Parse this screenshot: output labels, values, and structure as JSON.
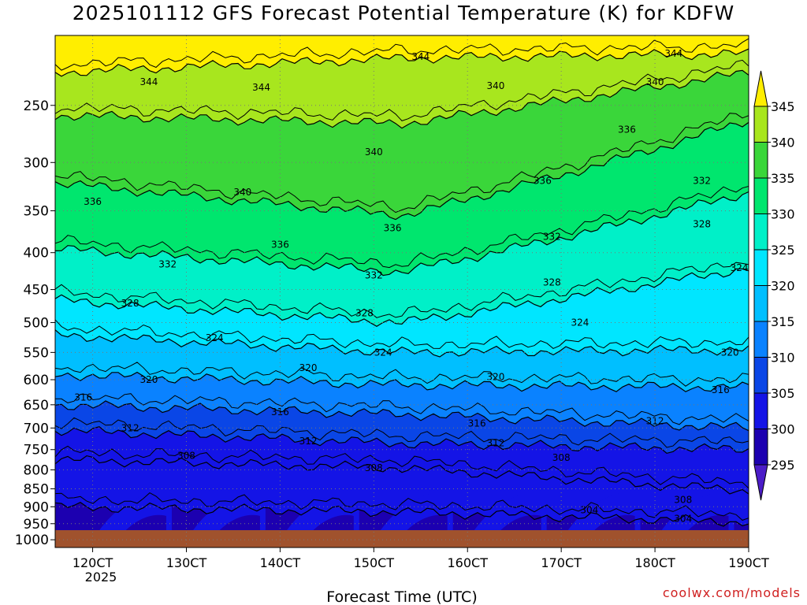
{
  "chart_data": {
    "type": "heatmap",
    "title": "2025101112 GFS Forecast Potential Temperature (K) for KDFW",
    "xlabel": "Forecast Time (UTC)",
    "ylabel": "",
    "x_ticks": [
      "120CT",
      "130CT",
      "140CT",
      "150CT",
      "160CT",
      "170CT",
      "180CT",
      "190CT"
    ],
    "x_ticks_x": [
      12,
      13,
      14,
      15,
      16,
      17,
      18,
      19
    ],
    "x_sublabel": "2025",
    "xlim": [
      11.6,
      19.0
    ],
    "y_ticks": [
      250,
      300,
      350,
      400,
      450,
      500,
      550,
      600,
      650,
      700,
      750,
      800,
      850,
      900,
      950,
      1000
    ],
    "y_scale": "log",
    "y_reversed": true,
    "ylim": [
      1025,
      200
    ],
    "colorbar_levels": [
      345,
      340,
      335,
      330,
      325,
      320,
      315,
      310,
      305,
      300,
      295
    ],
    "colorbar_colors": [
      "#ffee00",
      "#a8e61e",
      "#3ad63a",
      "#00e66e",
      "#00f0c8",
      "#00e6ff",
      "#00bfff",
      "#0a82ff",
      "#0a46e6",
      "#1414e6",
      "#1c00b0",
      "#4b1cc8"
    ],
    "contour_levels": [
      344,
      340,
      336,
      332,
      328,
      324,
      320,
      316,
      312,
      308,
      304
    ],
    "contour_pressure_at_start": [
      225,
      258,
      320,
      395,
      465,
      520,
      590,
      650,
      705,
      775,
      900
    ],
    "contour_pressure_at_mid": [
      215,
      265,
      355,
      425,
      500,
      550,
      610,
      670,
      735,
      795,
      915
    ],
    "contour_pressure_at_end": [
      212,
      225,
      262,
      330,
      420,
      545,
      615,
      700,
      750,
      855,
      945
    ],
    "labels_shown": [
      {
        "value": "344",
        "x": 15.5,
        "p": 214
      },
      {
        "value": "344",
        "x": 18.2,
        "p": 212
      },
      {
        "value": "344",
        "x": 12.6,
        "p": 232
      },
      {
        "value": "344",
        "x": 13.8,
        "p": 236
      },
      {
        "value": "340",
        "x": 16.3,
        "p": 235
      },
      {
        "value": "340",
        "x": 18.0,
        "p": 232
      },
      {
        "value": "340",
        "x": 15.0,
        "p": 290
      },
      {
        "value": "340",
        "x": 13.6,
        "p": 330
      },
      {
        "value": "336",
        "x": 12.0,
        "p": 340
      },
      {
        "value": "336",
        "x": 17.7,
        "p": 270
      },
      {
        "value": "336",
        "x": 16.8,
        "p": 318
      },
      {
        "value": "336",
        "x": 15.2,
        "p": 370
      },
      {
        "value": "336",
        "x": 14.0,
        "p": 390
      },
      {
        "value": "332",
        "x": 18.5,
        "p": 318
      },
      {
        "value": "332",
        "x": 16.9,
        "p": 380
      },
      {
        "value": "332",
        "x": 15.0,
        "p": 430
      },
      {
        "value": "332",
        "x": 12.8,
        "p": 415
      },
      {
        "value": "328",
        "x": 18.5,
        "p": 365
      },
      {
        "value": "328",
        "x": 16.9,
        "p": 440
      },
      {
        "value": "328",
        "x": 14.9,
        "p": 485
      },
      {
        "value": "328",
        "x": 12.4,
        "p": 470
      },
      {
        "value": "324",
        "x": 18.9,
        "p": 420
      },
      {
        "value": "324",
        "x": 17.2,
        "p": 500
      },
      {
        "value": "324",
        "x": 15.1,
        "p": 550
      },
      {
        "value": "324",
        "x": 13.3,
        "p": 525
      },
      {
        "value": "320",
        "x": 18.8,
        "p": 550
      },
      {
        "value": "320",
        "x": 16.3,
        "p": 595
      },
      {
        "value": "320",
        "x": 14.3,
        "p": 578
      },
      {
        "value": "320",
        "x": 12.6,
        "p": 600
      },
      {
        "value": "316",
        "x": 18.7,
        "p": 620
      },
      {
        "value": "316",
        "x": 16.1,
        "p": 690
      },
      {
        "value": "316",
        "x": 14.0,
        "p": 665
      },
      {
        "value": "316",
        "x": 11.9,
        "p": 635
      },
      {
        "value": "312",
        "x": 18.0,
        "p": 685
      },
      {
        "value": "312",
        "x": 16.3,
        "p": 735
      },
      {
        "value": "312",
        "x": 14.3,
        "p": 730
      },
      {
        "value": "312",
        "x": 12.4,
        "p": 700
      },
      {
        "value": "308",
        "x": 17.0,
        "p": 770
      },
      {
        "value": "308",
        "x": 15.0,
        "p": 795
      },
      {
        "value": "308",
        "x": 13.0,
        "p": 765
      },
      {
        "value": "308",
        "x": 18.3,
        "p": 880
      },
      {
        "value": "304",
        "x": 17.3,
        "p": 910
      },
      {
        "value": "304",
        "x": 18.3,
        "p": 935
      }
    ]
  },
  "watermark": "coolwx.com/models"
}
